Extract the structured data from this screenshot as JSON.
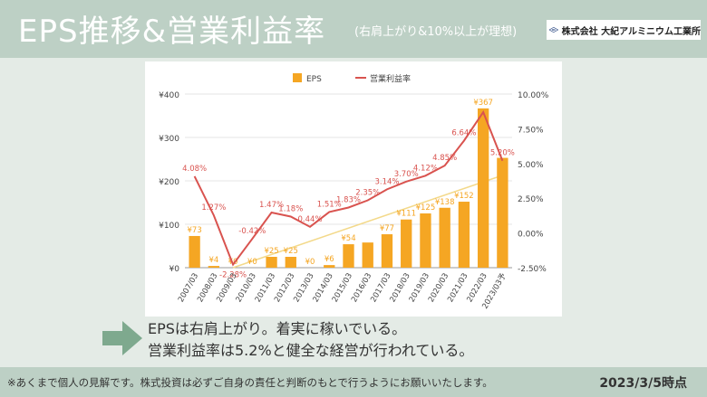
{
  "header": {
    "title": "EPS推移&営業利益率",
    "subtitle": "(右肩上がり&10%以上が理想)",
    "logo_mark": "DIK",
    "logo_text": "株式会社 大紀アルミニウム工業所"
  },
  "colors": {
    "bar": "#f5a623",
    "line": "#d9534f",
    "trend": "#f3d98a",
    "band": "#bdd0c5"
  },
  "chart_data": {
    "type": "bar",
    "title": "",
    "categories": [
      "2007/03",
      "2008/03",
      "2009/03",
      "2010/03",
      "2011/03",
      "2012/03",
      "2013/03",
      "2014/03",
      "2015/03",
      "2016/03",
      "2017/03",
      "2018/03",
      "2019/03",
      "2020/03",
      "2021/03",
      "2022/03",
      "2023/03予"
    ],
    "series": [
      {
        "name": "EPS",
        "type": "bar",
        "axis": "left",
        "values": [
          73,
          4,
          0,
          0,
          25,
          25,
          0,
          6,
          54,
          58,
          77,
          111,
          125,
          138,
          152,
          367,
          253
        ],
        "labels": [
          "¥73",
          "¥4",
          "¥0",
          "¥0",
          "¥25",
          "¥25",
          "¥0",
          "¥6",
          "¥54",
          "",
          "¥77",
          "¥111",
          "¥125",
          "¥138",
          "¥152",
          "¥367",
          ""
        ]
      },
      {
        "name": "営業利益率",
        "type": "line",
        "axis": "right",
        "values": [
          4.08,
          1.27,
          -2.28,
          -0.42,
          1.47,
          1.18,
          0.44,
          1.51,
          1.83,
          2.35,
          3.14,
          3.7,
          4.12,
          4.85,
          6.64,
          8.7,
          5.2
        ],
        "labels": [
          "4.08%",
          "1.27%",
          "-2.28%",
          "-0.42%",
          "1.47%",
          "1.18%",
          "0.44%",
          "1.51%",
          "1.83%",
          "2.35%",
          "3.14%",
          "3.70%",
          "4.12%",
          "4.85%",
          "6.64%",
          "",
          "5.20%"
        ]
      }
    ],
    "y_left": {
      "range": [
        0,
        400
      ],
      "ticks": [
        "¥0",
        "¥100",
        "¥200",
        "¥300",
        "¥400"
      ]
    },
    "y_right": {
      "range": [
        -2.5,
        10
      ],
      "ticks": [
        "-2.50%",
        "0.00%",
        "2.50%",
        "5.00%",
        "7.50%",
        "10.00%"
      ]
    },
    "trendline": true,
    "legend_position": "top"
  },
  "comments": [
    "EPSは右肩上がり。着実に稼いでいる。",
    "営業利益率は5.2%と健全な経営が行われている。"
  ],
  "footer": {
    "disclaimer": "※あくまで個人の見解です。株式投資は必ずご自身の責任と判断のもとで行うようにお願いいたします。",
    "as_of": "2023/3/5時点"
  }
}
